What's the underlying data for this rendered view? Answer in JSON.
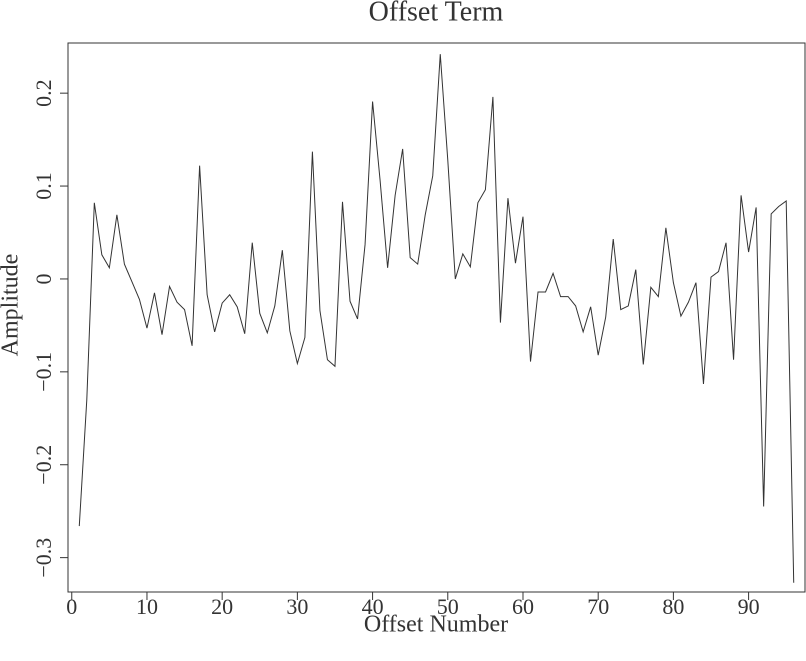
{
  "chart_data": {
    "type": "line",
    "title": "Offset Term",
    "x_label": "Offset Number",
    "y_label": "Amplitude",
    "x": [
      1,
      2,
      3,
      4,
      5,
      6,
      7,
      8,
      9,
      10,
      11,
      12,
      13,
      14,
      15,
      16,
      17,
      18,
      19,
      20,
      21,
      22,
      23,
      24,
      25,
      26,
      27,
      28,
      29,
      30,
      31,
      32,
      33,
      34,
      35,
      36,
      37,
      38,
      39,
      40,
      41,
      42,
      43,
      44,
      45,
      46,
      47,
      48,
      49,
      50,
      51,
      52,
      53,
      54,
      55,
      56,
      57,
      58,
      59,
      60,
      61,
      62,
      63,
      64,
      65,
      66,
      67,
      68,
      69,
      70,
      71,
      72,
      73,
      74,
      75,
      76,
      77,
      78,
      79,
      80,
      81,
      82,
      83,
      84,
      85,
      86,
      87,
      88,
      89,
      90,
      91,
      92,
      93,
      94,
      95,
      96
    ],
    "series": [
      {
        "name": "Offset term",
        "color": "#333333",
        "values": [
          -0.266,
          -0.13,
          0.082,
          0.026,
          0.012,
          0.069,
          0.016,
          -0.003,
          -0.022,
          -0.053,
          -0.015,
          -0.06,
          -0.008,
          -0.025,
          -0.033,
          -0.072,
          0.122,
          -0.017,
          -0.057,
          -0.026,
          -0.017,
          -0.03,
          -0.059,
          0.039,
          -0.037,
          -0.058,
          -0.029,
          0.031,
          -0.056,
          -0.091,
          -0.063,
          0.137,
          -0.034,
          -0.087,
          -0.094,
          0.083,
          -0.024,
          -0.043,
          0.037,
          0.191,
          0.106,
          0.012,
          0.09,
          0.14,
          0.023,
          0.016,
          0.069,
          0.111,
          0.242,
          0.128,
          0.0,
          0.027,
          0.013,
          0.082,
          0.096,
          0.196,
          -0.047,
          0.087,
          0.017,
          0.067,
          -0.089,
          -0.014,
          -0.014,
          0.006,
          -0.019,
          -0.019,
          -0.029,
          -0.057,
          -0.03,
          -0.082,
          -0.041,
          0.043,
          -0.033,
          -0.029,
          0.01,
          -0.092,
          -0.009,
          -0.019,
          0.055,
          -0.004,
          -0.04,
          -0.025,
          -0.004,
          -0.113,
          0.002,
          0.008,
          0.039,
          -0.087,
          0.09,
          0.029,
          0.077,
          -0.245,
          0.07,
          0.078,
          0.084,
          -0.327
        ]
      }
    ],
    "xlim": [
      -0.5,
      97.5
    ],
    "ylim": [
      -0.337,
      0.254
    ],
    "xticks": [
      0,
      10,
      20,
      30,
      40,
      50,
      60,
      70,
      80,
      90
    ],
    "yticks": [
      {
        "value": -0.3,
        "label": "−0.3"
      },
      {
        "value": -0.2,
        "label": "−0.2"
      },
      {
        "value": -0.1,
        "label": "−0.1"
      },
      0,
      0.1,
      0.2
    ],
    "grid": false
  }
}
